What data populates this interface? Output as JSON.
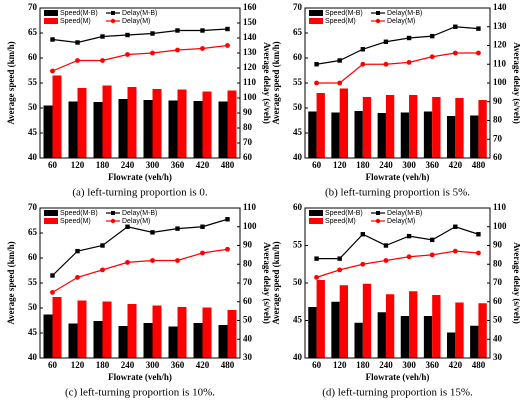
{
  "chart_data": [
    {
      "type": "bar-line",
      "xlabel": "Flowrate (veh/h)",
      "ylabel": "Average speed (km/h)",
      "y2label": "Average delay (s/veh)",
      "caption": "(a)  left-turning proportion is 0.",
      "categories": [
        "60",
        "120",
        "180",
        "240",
        "300",
        "360",
        "420",
        "480"
      ],
      "ylim": [
        40,
        70
      ],
      "yticks": [
        40,
        45,
        50,
        55,
        60,
        65,
        70
      ],
      "y2lim": [
        60,
        160
      ],
      "y2ticks": [
        60,
        70,
        80,
        90,
        100,
        110,
        120,
        130,
        140,
        150,
        160
      ],
      "series": [
        {
          "name": "Speed(M-B)",
          "color": "#000000",
          "type": "bar",
          "values": [
            50.5,
            51.3,
            51.2,
            51.8,
            51.6,
            51.5,
            51.4,
            51.3
          ]
        },
        {
          "name": "Speed(M)",
          "color": "#ff0000",
          "type": "bar",
          "values": [
            56.5,
            54.0,
            54.5,
            54.2,
            53.8,
            53.7,
            53.3,
            53.5
          ]
        },
        {
          "name": "Delay(M-B)",
          "color": "#000000",
          "type": "line",
          "marker": "square",
          "axis": "y2",
          "values": [
            139,
            137,
            141,
            142,
            143,
            145,
            145,
            146
          ]
        },
        {
          "name": "Delay(M)",
          "color": "#ff0000",
          "type": "line",
          "marker": "circle",
          "axis": "y2",
          "values": [
            118,
            125,
            125,
            129,
            130,
            132,
            133,
            135
          ]
        }
      ]
    },
    {
      "type": "bar-line",
      "xlabel": "Flowrate (veh/h)",
      "ylabel": "Average speed (km/h)",
      "y2label": "Average delay (s/veh)",
      "caption": "(b)  left-turning proportion is 5%.",
      "categories": [
        "60",
        "120",
        "180",
        "240",
        "300",
        "360",
        "420",
        "480"
      ],
      "ylim": [
        40,
        70
      ],
      "yticks": [
        40,
        45,
        50,
        55,
        60,
        65,
        70
      ],
      "y2lim": [
        60,
        140
      ],
      "y2ticks": [
        60,
        70,
        80,
        90,
        100,
        110,
        120,
        130,
        140
      ],
      "series": [
        {
          "name": "Speed(M-B)",
          "color": "#000000",
          "type": "bar",
          "values": [
            49.3,
            49.1,
            49.4,
            49.0,
            49.1,
            49.3,
            48.4,
            48.5
          ]
        },
        {
          "name": "Speed(M)",
          "color": "#ff0000",
          "type": "bar",
          "values": [
            53.0,
            53.9,
            52.2,
            52.6,
            52.6,
            52.2,
            52.0,
            51.6
          ]
        },
        {
          "name": "Delay(M-B)",
          "color": "#000000",
          "type": "line",
          "marker": "square",
          "axis": "y2",
          "values": [
            110,
            112,
            118,
            122,
            124,
            125,
            130,
            129
          ]
        },
        {
          "name": "Delay(M)",
          "color": "#ff0000",
          "type": "line",
          "marker": "circle",
          "axis": "y2",
          "values": [
            100,
            100,
            110,
            110,
            111,
            114,
            116,
            116
          ]
        }
      ]
    },
    {
      "type": "bar-line",
      "xlabel": "Flowrate (veh/h)",
      "ylabel": "Average speed (km/h)",
      "y2label": "Average delay (s/veh)",
      "caption": "(c)  left-turning proportion is 10%.",
      "categories": [
        "60",
        "120",
        "180",
        "240",
        "300",
        "360",
        "420",
        "480"
      ],
      "ylim": [
        40,
        70
      ],
      "yticks": [
        40,
        45,
        50,
        55,
        60,
        65,
        70
      ],
      "y2lim": [
        30,
        110
      ],
      "y2ticks": [
        30,
        40,
        50,
        60,
        70,
        80,
        90,
        100,
        110
      ],
      "series": [
        {
          "name": "Speed(M-B)",
          "color": "#000000",
          "type": "bar",
          "values": [
            48.7,
            46.9,
            47.4,
            46.4,
            47.0,
            46.3,
            47.0,
            46.6
          ]
        },
        {
          "name": "Speed(M)",
          "color": "#ff0000",
          "type": "bar",
          "values": [
            52.2,
            51.5,
            51.3,
            50.8,
            50.5,
            50.2,
            50.1,
            49.6
          ]
        },
        {
          "name": "Delay(M-B)",
          "color": "#000000",
          "type": "line",
          "marker": "square",
          "axis": "y2",
          "values": [
            74,
            87,
            90,
            100,
            97,
            99,
            100,
            104
          ]
        },
        {
          "name": "Delay(M)",
          "color": "#ff0000",
          "type": "line",
          "marker": "circle",
          "axis": "y2",
          "values": [
            65,
            73,
            77,
            81,
            82,
            82,
            86,
            88
          ]
        }
      ]
    },
    {
      "type": "bar-line",
      "xlabel": "Flowrate (veh/h)",
      "ylabel": "Average speed (km/h)",
      "y2label": "Average delay (s/veh)",
      "caption": "(d)  left-turning proportion is 15%.",
      "categories": [
        "60",
        "120",
        "180",
        "240",
        "300",
        "360",
        "420",
        "480"
      ],
      "ylim": [
        40,
        60
      ],
      "yticks": [
        40,
        45,
        50,
        55,
        60
      ],
      "y2lim": [
        30,
        110
      ],
      "y2ticks": [
        30,
        40,
        50,
        60,
        70,
        80,
        90,
        100,
        110
      ],
      "series": [
        {
          "name": "Speed(M-B)",
          "color": "#000000",
          "type": "bar",
          "values": [
            46.8,
            47.5,
            44.7,
            46.1,
            45.6,
            45.6,
            43.4,
            44.3
          ]
        },
        {
          "name": "Speed(M)",
          "color": "#ff0000",
          "type": "bar",
          "values": [
            50.4,
            49.7,
            49.9,
            48.5,
            48.9,
            48.4,
            47.4,
            47.3
          ]
        },
        {
          "name": "Delay(M-B)",
          "color": "#000000",
          "type": "line",
          "marker": "square",
          "axis": "y2",
          "values": [
            83,
            83,
            96,
            90,
            95,
            93,
            100,
            96
          ]
        },
        {
          "name": "Delay(M)",
          "color": "#ff0000",
          "type": "line",
          "marker": "circle",
          "axis": "y2",
          "values": [
            73,
            77,
            80,
            82,
            84,
            85,
            87,
            86
          ]
        }
      ]
    }
  ]
}
